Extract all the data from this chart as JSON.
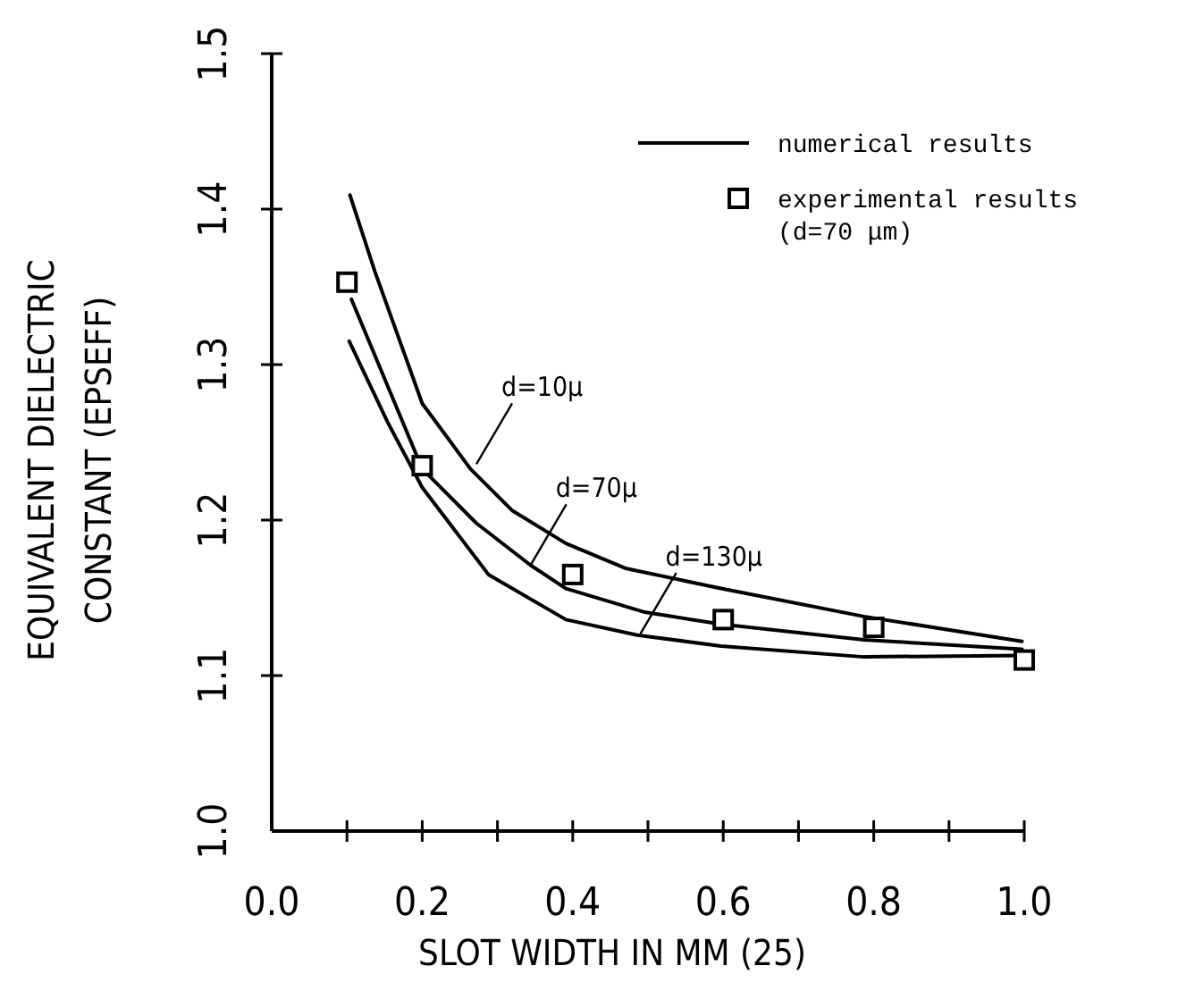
{
  "chart_data": {
    "type": "line",
    "xlabel": "SLOT WIDTH IN MM (25)",
    "ylabel": "EQUIVALENT DIELECTRIC\nCONSTANT (EPSEFF)",
    "xlim": [
      0,
      1.0
    ],
    "ylim": [
      1.0,
      1.5
    ],
    "xticks": [
      {
        "value": 0,
        "label": "0.0"
      },
      {
        "value": 0.1,
        "label": null
      },
      {
        "value": 0.2,
        "label": "0.2"
      },
      {
        "value": 0.3,
        "label": null
      },
      {
        "value": 0.4,
        "label": "0.4"
      },
      {
        "value": 0.5,
        "label": null
      },
      {
        "value": 0.6,
        "label": "0.6"
      },
      {
        "value": 0.7,
        "label": null
      },
      {
        "value": 0.8,
        "label": "0.8"
      },
      {
        "value": 0.9,
        "label": null
      },
      {
        "value": 1.0,
        "label": "1.0"
      }
    ],
    "yticks": [
      {
        "value": 1.0,
        "label": "1.0"
      },
      {
        "value": 1.1,
        "label": "1.1"
      },
      {
        "value": 1.2,
        "label": "1.2"
      },
      {
        "value": 1.3,
        "label": "1.3"
      },
      {
        "value": 1.4,
        "label": "1.4"
      },
      {
        "value": 1.5,
        "label": "1.5"
      }
    ],
    "legend": "top right",
    "grid": false,
    "series": [
      {
        "name": "numerical results",
        "color": "#000000",
        "marker": "none",
        "line_style": "solid",
        "x": [
          0.104,
          0.137,
          0.2,
          0.264,
          0.32,
          0.391,
          0.47,
          0.597,
          0.787,
          0.997
        ],
        "values": [
          1.409,
          1.36,
          1.275,
          1.233,
          1.206,
          1.185,
          1.169,
          1.156,
          1.138,
          1.122
        ]
      },
      {
        "color": "#000000",
        "marker": "none",
        "line_style": "solid",
        "x": [
          0.106,
          0.2,
          0.272,
          0.344,
          0.391,
          0.494,
          0.597,
          0.787,
          0.997
        ],
        "values": [
          1.342,
          1.233,
          1.198,
          1.171,
          1.156,
          1.141,
          1.133,
          1.123,
          1.117
        ]
      },
      {
        "color": "#000000",
        "marker": "none",
        "line_style": "solid",
        "x": [
          0.103,
          0.154,
          0.2,
          0.288,
          0.391,
          0.486,
          0.597,
          0.787,
          0.997
        ],
        "values": [
          1.315,
          1.263,
          1.221,
          1.165,
          1.136,
          1.126,
          1.119,
          1.112,
          1.113
        ]
      },
      {
        "name": "experimental results\n(d=70 μm)",
        "type": "scatter",
        "color": "#000000",
        "marker": "square",
        "x": [
          0.1,
          0.2,
          0.4,
          0.6,
          0.8,
          1.0
        ],
        "values": [
          1.353,
          1.235,
          1.165,
          1.136,
          1.131,
          1.11
        ]
      }
    ],
    "annotations": [
      {
        "text": "d=10μ",
        "x": 0.272,
        "y": 1.236
      },
      {
        "text": "d=70μ",
        "x": 0.344,
        "y": 1.171
      },
      {
        "text": "d=130μ",
        "x": 0.49,
        "y": 1.127
      }
    ]
  }
}
